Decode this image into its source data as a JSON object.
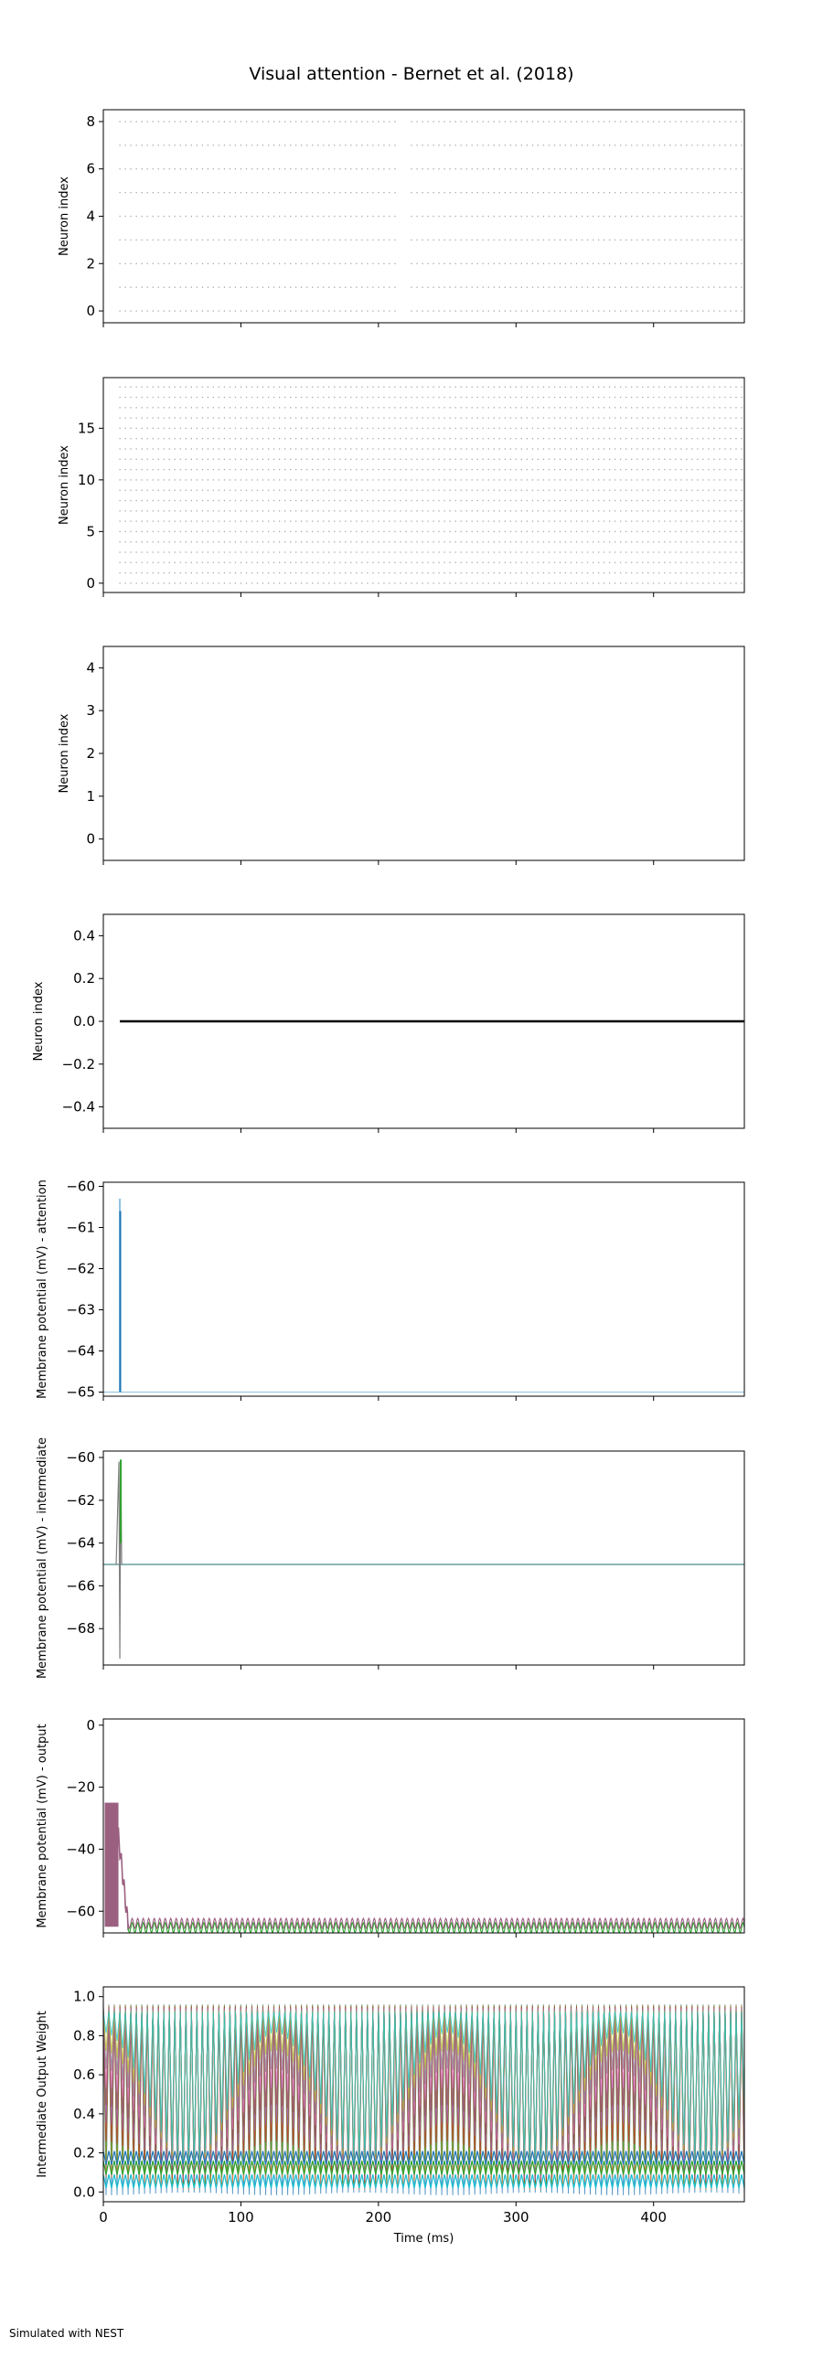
{
  "figure": {
    "title": "Visual attention - Bernet et al. (2018)",
    "footer": "Simulated with NEST"
  },
  "chart_data": [
    {
      "type": "scatter",
      "subtype": "raster",
      "ylabel": "Neuron index",
      "xlim": [
        0,
        466
      ],
      "ylim": [
        -0.5,
        8.5
      ],
      "yticks": [
        0,
        2,
        4,
        6,
        8
      ],
      "neurons": [
        0,
        1,
        2,
        3,
        4,
        5,
        6,
        7,
        8
      ],
      "spike_start": 12,
      "spike_end": 466,
      "spike_interval": 4,
      "gap": [
        212,
        222
      ],
      "color": "#a8a8a8"
    },
    {
      "type": "scatter",
      "subtype": "raster",
      "ylabel": "Neuron index",
      "xlim": [
        0,
        466
      ],
      "ylim": [
        -0.9,
        19.9
      ],
      "yticks": [
        0,
        5,
        10,
        15
      ],
      "neurons": [
        0,
        1,
        2,
        3,
        4,
        5,
        6,
        7,
        8,
        9,
        10,
        11,
        12,
        13,
        14,
        15,
        16,
        17,
        18,
        19
      ],
      "spike_start": 12,
      "spike_end": 466,
      "spike_interval": 4,
      "color": "#a8a8a8"
    },
    {
      "type": "scatter",
      "subtype": "raster",
      "ylabel": "Neuron index",
      "xlim": [
        0,
        466
      ],
      "ylim": [
        -0.5,
        4.5
      ],
      "yticks": [
        0,
        1,
        2,
        3,
        4
      ],
      "neurons": [],
      "color": "#a8a8a8"
    },
    {
      "type": "scatter",
      "subtype": "raster",
      "ylabel": "Neuron index",
      "xlim": [
        0,
        466
      ],
      "ylim": [
        -0.5,
        0.5
      ],
      "yticks": [
        -0.4,
        -0.2,
        0.0,
        0.2,
        0.4
      ],
      "ytick_labels": [
        "−0.4",
        "−0.2",
        "0.0",
        "0.2",
        "0.4"
      ],
      "line": {
        "x0": 12,
        "x1": 466,
        "y": 0.0
      },
      "color": "#000000"
    },
    {
      "type": "line",
      "ylabel": "Membrane potential (mV) - attention",
      "xlim": [
        0,
        466
      ],
      "ylim": [
        -65.1,
        -59.9
      ],
      "yticks": [
        -65,
        -64,
        -63,
        -62,
        -61,
        -60
      ],
      "ytick_labels": [
        "−65",
        "−64",
        "−63",
        "−62",
        "−61",
        "−60"
      ],
      "baseline": -65,
      "spikes": [
        {
          "x": 12,
          "peak": -60.3,
          "color": "#8fbfe0"
        },
        {
          "x": 12.3,
          "peak": -60.6,
          "color": "#1f77b4"
        }
      ],
      "baseline_color": "#9ecae1"
    },
    {
      "type": "line",
      "ylabel": "Membrane potential (mV) - intermediate",
      "xlim": [
        0,
        466
      ],
      "ylim": [
        -69.7,
        -59.7
      ],
      "yticks": [
        -68,
        -66,
        -64,
        -62,
        -60
      ],
      "ytick_labels": [
        "−68",
        "−66",
        "−64",
        "−62",
        "−60"
      ],
      "baseline": -65,
      "spike": {
        "x": 12,
        "peak": -60.2,
        "trough": -69.4
      },
      "colors": [
        "#1f77b4",
        "#2ca02c",
        "#17becf",
        "#8c564b",
        "#7f7f7f"
      ]
    },
    {
      "type": "line",
      "ylabel": "Membrane potential (mV) - output",
      "xlim": [
        0,
        466
      ],
      "ylim": [
        -67,
        2
      ],
      "yticks": [
        -60,
        -40,
        -20,
        0
      ],
      "ytick_labels": [
        "−60",
        "−40",
        "−20",
        "0"
      ],
      "initial_block": {
        "x0": 1,
        "x1": 11,
        "ymin": -65,
        "ymax": -25,
        "color": "#9b5f80"
      },
      "oscillation": {
        "center": -64.5,
        "amplitude": 1.6,
        "period": 4,
        "start": 18
      }
    },
    {
      "type": "line",
      "ylabel": "Intermediate Output Weight",
      "xlabel": "Time (ms)",
      "xlim": [
        0,
        466
      ],
      "ylim": [
        -0.05,
        1.05
      ],
      "xticks": [
        0,
        100,
        200,
        300,
        400
      ],
      "yticks": [
        0.0,
        0.2,
        0.4,
        0.6,
        0.8,
        1.0
      ],
      "ytick_labels": [
        "0.0",
        "0.2",
        "0.4",
        "0.6",
        "0.8",
        "1.0"
      ],
      "weight_range": [
        -0.02,
        0.96
      ],
      "oscillation_period": 4,
      "colors": [
        "#1f77b4",
        "#ff7f0e",
        "#2ca02c",
        "#d62728",
        "#9467bd",
        "#8c564b",
        "#e377c2",
        "#7f7f7f",
        "#bcbd22",
        "#17becf"
      ]
    }
  ]
}
